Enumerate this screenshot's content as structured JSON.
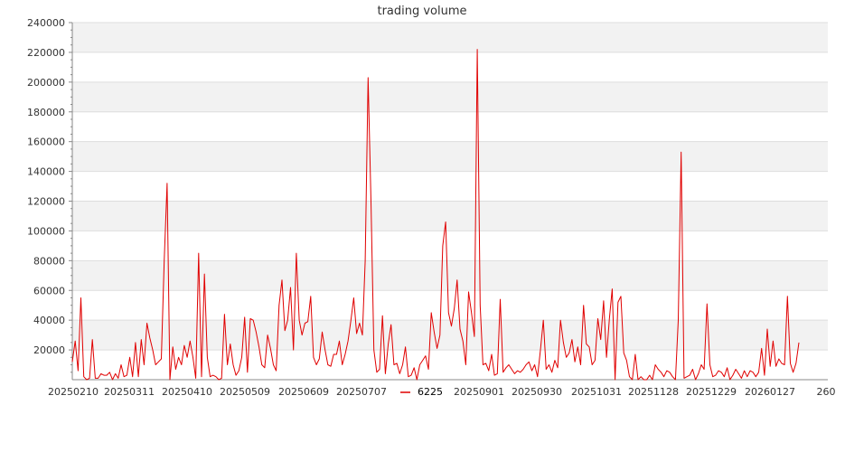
{
  "chart_data": {
    "type": "line",
    "title": "trading volume",
    "xlabel": "",
    "ylabel": "",
    "ylim": [
      0,
      240000
    ],
    "yticks": [
      20000,
      40000,
      60000,
      80000,
      100000,
      120000,
      140000,
      160000,
      180000,
      200000,
      220000,
      240000
    ],
    "yticks_text": [
      "20000",
      "40000",
      "60000",
      "80000",
      "100000",
      "120000",
      "140000",
      "160000",
      "180000",
      "200000",
      "220000",
      "240000"
    ],
    "xtick_labels": [
      "20250210",
      "20250311",
      "20250410",
      "20250509",
      "20250609",
      "20250707",
      "20250901",
      "20250930",
      "20251031",
      "20251128",
      "20251229",
      "20260127",
      "260"
    ],
    "grid": true,
    "background_bands": true,
    "legend_position": "bottom-center",
    "colors": {
      "line": "#e00000",
      "band": "#f2f2f2",
      "grid": "#dddddd",
      "axis": "#888888"
    },
    "series": [
      {
        "name": "6225",
        "color": "#e00000",
        "values": [
          12000,
          26000,
          6000,
          55000,
          2000,
          0,
          1000,
          27000,
          1000,
          1000,
          4000,
          3000,
          3000,
          5000,
          0,
          4000,
          1000,
          10000,
          2000,
          3000,
          15000,
          2000,
          25000,
          2000,
          27000,
          10000,
          38000,
          28000,
          20000,
          10000,
          12000,
          14000,
          80000,
          132000,
          0,
          22000,
          7000,
          15000,
          10000,
          23000,
          15000,
          26000,
          15000,
          1000,
          85000,
          2000,
          71000,
          15000,
          2000,
          3000,
          2000,
          0,
          1000,
          44000,
          10000,
          24000,
          10000,
          3000,
          6000,
          15000,
          42000,
          5000,
          41000,
          40000,
          32000,
          22000,
          10000,
          8000,
          30000,
          21000,
          10000,
          6000,
          50000,
          67000,
          33000,
          40000,
          62000,
          20000,
          85000,
          40000,
          30000,
          38000,
          39000,
          56000,
          15000,
          10000,
          14000,
          32000,
          20000,
          10000,
          9000,
          17000,
          17000,
          26000,
          10000,
          17000,
          26000,
          40000,
          55000,
          31000,
          38000,
          30000,
          80000,
          203000,
          120000,
          20000,
          5000,
          7000,
          43000,
          4000,
          24000,
          37000,
          10000,
          11000,
          4000,
          10000,
          22000,
          2000,
          3000,
          8000,
          0,
          10000,
          13000,
          16000,
          7000,
          45000,
          32000,
          21000,
          30000,
          90000,
          106000,
          45000,
          36000,
          48000,
          67000,
          34000,
          26000,
          10000,
          59000,
          45000,
          29000,
          222000,
          50000,
          10000,
          11000,
          6000,
          17000,
          3000,
          4000,
          54000,
          5000,
          8000,
          10000,
          7000,
          4000,
          6000,
          5000,
          7000,
          10000,
          12000,
          6000,
          10000,
          2000,
          20000,
          40000,
          7000,
          10000,
          5000,
          13000,
          8000,
          40000,
          25000,
          15000,
          18000,
          27000,
          12000,
          22000,
          10000,
          50000,
          24000,
          22000,
          10000,
          13000,
          41000,
          27000,
          53000,
          15000,
          41000,
          61000,
          0,
          52000,
          56000,
          18000,
          13000,
          2000,
          0,
          17000,
          0,
          2000,
          0,
          0,
          3000,
          0,
          10000,
          7000,
          5000,
          2000,
          6000,
          5000,
          2000,
          0,
          40000,
          153000,
          1000,
          2000,
          3000,
          7000,
          0,
          4000,
          10000,
          7000,
          51000,
          10000,
          2000,
          3000,
          6000,
          5000,
          2000,
          8000,
          0,
          3000,
          7000,
          4000,
          1000,
          6000,
          2000,
          6000,
          5000,
          2000,
          5000,
          21000,
          3000,
          34000,
          9000,
          26000,
          9000,
          14000,
          11000,
          10000,
          56000,
          11000,
          5000,
          11000,
          25000
        ]
      }
    ]
  }
}
